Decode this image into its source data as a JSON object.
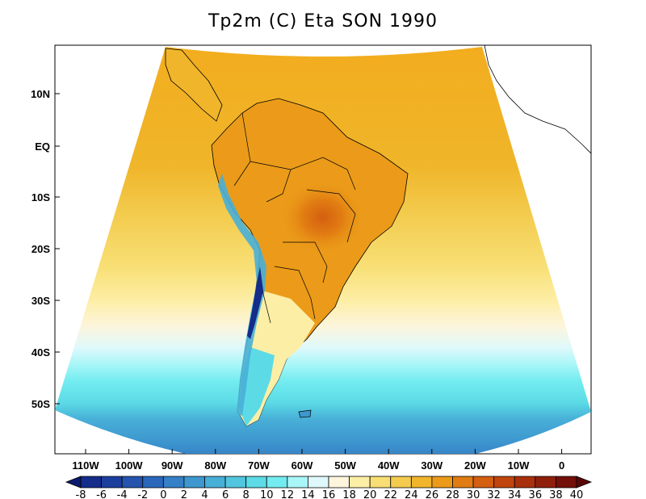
{
  "title": "Tp2m (C) Eta SON 1990",
  "map": {
    "lat_labels": [
      "10N",
      "EQ",
      "10S",
      "20S",
      "30S",
      "40S",
      "50S"
    ],
    "lon_labels": [
      "110W",
      "100W",
      "90W",
      "80W",
      "70W",
      "60W",
      "50W",
      "40W",
      "30W",
      "20W",
      "10W",
      "0"
    ]
  },
  "colorbar": {
    "labels": [
      "-8",
      "-6",
      "-4",
      "-2",
      "0",
      "2",
      "4",
      "6",
      "8",
      "10",
      "12",
      "14",
      "16",
      "18",
      "20",
      "22",
      "24",
      "26",
      "28",
      "30",
      "32",
      "34",
      "36",
      "38",
      "40"
    ],
    "colors": [
      "#0b1a6e",
      "#142c8a",
      "#1c3f9e",
      "#2454ae",
      "#2b68bc",
      "#3580c6",
      "#3e98cf",
      "#48afd7",
      "#52c6df",
      "#5cdbe6",
      "#73ecf0",
      "#a9f6f8",
      "#dff9fb",
      "#fdf5dc",
      "#fdeea6",
      "#f8df75",
      "#f3cc4f",
      "#f0b52a",
      "#eb9b19",
      "#e17c12",
      "#d45f10",
      "#c1450e",
      "#a9300c",
      "#8f1f0b",
      "#731009",
      "#5a0607"
    ]
  }
}
